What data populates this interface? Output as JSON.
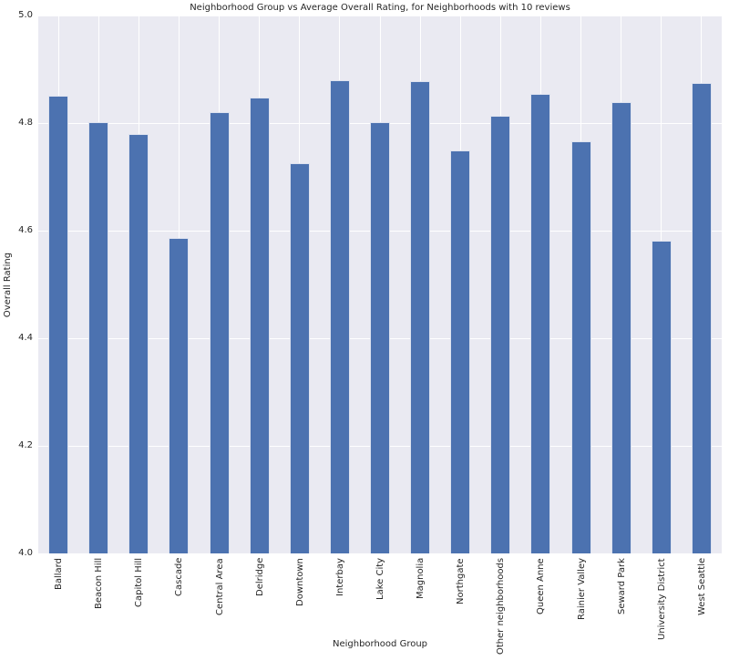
{
  "chart_data": {
    "type": "bar",
    "title": "Neighborhood Group vs Average Overall Rating, for Neighborhoods with 10 reviews",
    "xlabel": "Neighborhood Group",
    "ylabel": "Overall Rating",
    "ylim": [
      4.0,
      5.0
    ],
    "yticks": [
      4.0,
      4.2,
      4.4,
      4.6,
      4.8,
      5.0
    ],
    "ytick_labels": [
      "4.0",
      "4.2",
      "4.4",
      "4.6",
      "4.8",
      "5.0"
    ],
    "grid": "both",
    "legend": "none",
    "categories": [
      "Ballard",
      "Beacon Hill",
      "Capitol Hill",
      "Cascade",
      "Central Area",
      "Delridge",
      "Downtown",
      "Interbay",
      "Lake City",
      "Magnolia",
      "Northgate",
      "Other neighborhoods",
      "Queen Anne",
      "Rainier Valley",
      "Seward Park",
      "University District",
      "West Seattle"
    ],
    "values": [
      4.851,
      4.802,
      4.78,
      4.586,
      4.821,
      4.847,
      4.726,
      4.879,
      4.801,
      4.878,
      4.749,
      4.813,
      4.854,
      4.766,
      4.839,
      4.582,
      4.874
    ],
    "colors": {
      "bar_fill": "#4c72b0",
      "bar_edge": "#dde2ef",
      "plot_background": "#eaeaf2",
      "grid_line": "#ffffff",
      "figure_background": "#ffffff",
      "text": "#262626"
    }
  }
}
